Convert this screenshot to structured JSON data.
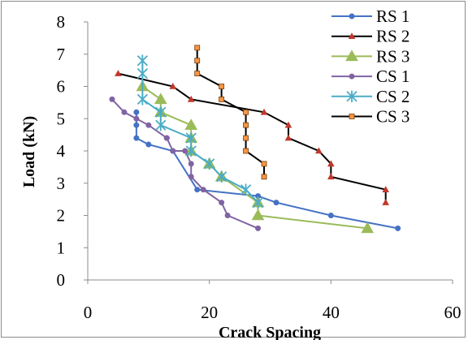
{
  "chart_data": {
    "type": "scatter",
    "xlabel": "Crack Spacing",
    "ylabel": "Load  (kN)",
    "xlim": [
      0,
      60
    ],
    "ylim": [
      0,
      8
    ],
    "xticks": [
      0,
      20,
      40,
      60
    ],
    "yticks": [
      0,
      1,
      2,
      3,
      4,
      5,
      6,
      7,
      8
    ],
    "grid": false,
    "legend_position": "top-right",
    "series": [
      {
        "name": "RS 1",
        "color": "#4472C4",
        "marker": "circle",
        "x": [
          51,
          40,
          31,
          28,
          18,
          14,
          10,
          8,
          8,
          8
        ],
        "y": [
          1.6,
          2.0,
          2.4,
          2.6,
          2.8,
          4.0,
          4.2,
          4.4,
          4.8,
          5.2
        ]
      },
      {
        "name": "RS 2",
        "color": "#C0392B",
        "marker": "triangle-small",
        "x": [
          49,
          49,
          40,
          40,
          38,
          33,
          33,
          29,
          17,
          14,
          5
        ],
        "y": [
          2.4,
          2.8,
          3.2,
          3.6,
          4.0,
          4.4,
          4.8,
          5.2,
          5.6,
          6.0,
          6.4
        ],
        "line_color": "#000000"
      },
      {
        "name": "RS 3",
        "color": "#9BBB59",
        "marker": "triangle",
        "x": [
          46,
          28,
          28,
          22,
          20,
          17,
          17,
          17,
          12,
          12,
          9
        ],
        "y": [
          1.6,
          2.0,
          2.4,
          3.2,
          3.6,
          4.0,
          4.4,
          4.8,
          5.2,
          5.6,
          6.0
        ]
      },
      {
        "name": "CS 1",
        "color": "#8064A2",
        "marker": "circle",
        "x": [
          28,
          23,
          22,
          19,
          17,
          17,
          16,
          14,
          13,
          13,
          10,
          8,
          6,
          4
        ],
        "y": [
          1.6,
          2.0,
          2.4,
          2.8,
          3.2,
          3.6,
          4.0,
          4.0,
          4.4,
          4.4,
          4.8,
          5.0,
          5.2,
          5.6
        ]
      },
      {
        "name": "CS 2",
        "color": "#4BACC6",
        "marker": "asterisk",
        "x": [
          28,
          26,
          22,
          20,
          17,
          17,
          12,
          12,
          9,
          9,
          9
        ],
        "y": [
          2.4,
          2.8,
          3.2,
          3.6,
          4.0,
          4.4,
          4.8,
          5.2,
          5.6,
          6.4,
          6.8
        ]
      },
      {
        "name": "CS 3",
        "color": "#F79646",
        "marker": "square",
        "x": [
          29,
          29,
          26,
          26,
          26,
          26,
          22,
          22,
          18,
          18,
          18
        ],
        "y": [
          3.2,
          3.6,
          4.0,
          4.4,
          4.8,
          5.2,
          5.6,
          6.0,
          6.4,
          6.8,
          7.2
        ],
        "line_color": "#000000"
      }
    ]
  }
}
